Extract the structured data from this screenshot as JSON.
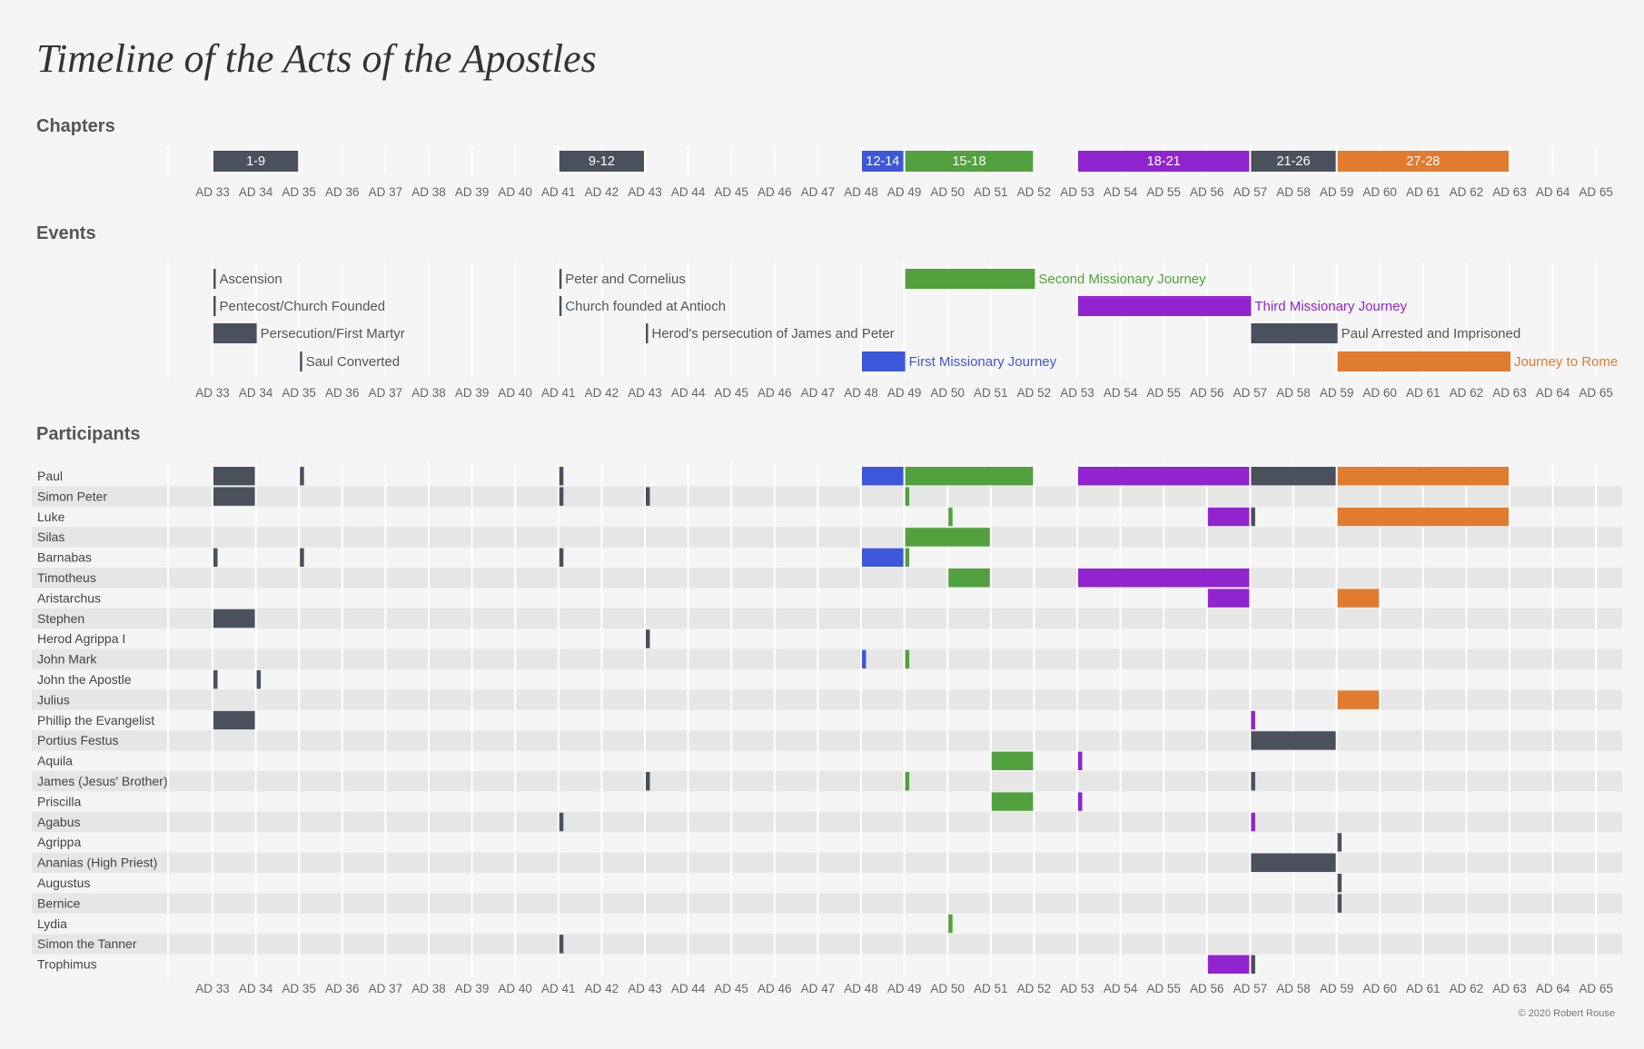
{
  "title": "Timeline of the Acts of the Apostles",
  "sections": {
    "chapters": "Chapters",
    "events": "Events",
    "participants": "Participants"
  },
  "copyright": "© 2020 Robert Rouse",
  "colors": {
    "dark": "#4a505c",
    "blue": "#3d57db",
    "green": "#52a03e",
    "purple": "#9124cf",
    "orange": "#e07b2f",
    "label": "#555555"
  },
  "chart_data": {
    "type": "gantt",
    "x_range": [
      33,
      65
    ],
    "tick_labels": [
      "AD 33",
      "AD 34",
      "AD 35",
      "AD 36",
      "AD 37",
      "AD 38",
      "AD 39",
      "AD 40",
      "AD 41",
      "AD 42",
      "AD 43",
      "AD 44",
      "AD 45",
      "AD 46",
      "AD 47",
      "AD 48",
      "AD 49",
      "AD 50",
      "AD 51",
      "AD 52",
      "AD 53",
      "AD 54",
      "AD 55",
      "AD 56",
      "AD 57",
      "AD 58",
      "AD 59",
      "AD 60",
      "AD 61",
      "AD 62",
      "AD 63",
      "AD 64",
      "AD 65"
    ],
    "chapters": [
      {
        "label": "1-9",
        "start": 33,
        "end": 35,
        "color": "dark"
      },
      {
        "label": "9-12",
        "start": 41,
        "end": 43,
        "color": "dark"
      },
      {
        "label": "12-14",
        "start": 48,
        "end": 49,
        "color": "blue"
      },
      {
        "label": "15-18",
        "start": 49,
        "end": 52,
        "color": "green"
      },
      {
        "label": "18-21",
        "start": 53,
        "end": 57,
        "color": "purple"
      },
      {
        "label": "21-26",
        "start": 57,
        "end": 59,
        "color": "dark"
      },
      {
        "label": "27-28",
        "start": 59,
        "end": 63,
        "color": "orange"
      }
    ],
    "events": [
      [
        {
          "label": "Ascension",
          "start": 33,
          "color": "dark"
        },
        {
          "label": "Peter and Cornelius",
          "start": 41,
          "color": "dark"
        },
        {
          "label": "Second Missionary Journey",
          "start": 49,
          "end": 52,
          "color": "green"
        }
      ],
      [
        {
          "label": "Pentecost/Church Founded",
          "start": 33,
          "color": "dark"
        },
        {
          "label": "Church founded at Antioch",
          "start": 41,
          "color": "dark"
        },
        {
          "label": "Third Missionary Journey",
          "start": 53,
          "end": 57,
          "color": "purple"
        }
      ],
      [
        {
          "label": "Persecution/First Martyr",
          "start": 33,
          "end": 34,
          "color": "dark"
        },
        {
          "label": "Herod's persecution of James and Peter",
          "start": 43,
          "color": "dark"
        },
        {
          "label": "Paul Arrested and Imprisoned",
          "start": 57,
          "end": 59,
          "color": "dark"
        }
      ],
      [
        {
          "label": "Saul Converted",
          "start": 35,
          "color": "dark"
        },
        {
          "label": "First Missionary Journey",
          "start": 48,
          "end": 49,
          "color": "blue"
        },
        {
          "label": "Journey to Rome",
          "start": 59,
          "end": 63,
          "color": "orange"
        }
      ]
    ],
    "participants": [
      {
        "name": "Paul",
        "spans": [
          [
            33,
            34,
            "dark"
          ],
          [
            35,
            null,
            "dark"
          ],
          [
            41,
            null,
            "dark"
          ],
          [
            48,
            49,
            "blue"
          ],
          [
            49,
            52,
            "green"
          ],
          [
            53,
            57,
            "purple"
          ],
          [
            57,
            59,
            "dark"
          ],
          [
            59,
            63,
            "orange"
          ]
        ]
      },
      {
        "name": "Simon Peter",
        "spans": [
          [
            33,
            34,
            "dark"
          ],
          [
            41,
            null,
            "dark"
          ],
          [
            43,
            null,
            "dark"
          ],
          [
            49,
            null,
            "green"
          ]
        ]
      },
      {
        "name": "Luke",
        "spans": [
          [
            50,
            null,
            "green"
          ],
          [
            56,
            57,
            "purple"
          ],
          [
            57,
            null,
            "dark"
          ],
          [
            59,
            63,
            "orange"
          ]
        ]
      },
      {
        "name": "Silas",
        "spans": [
          [
            49,
            51,
            "green"
          ]
        ]
      },
      {
        "name": "Barnabas",
        "spans": [
          [
            33,
            null,
            "dark"
          ],
          [
            35,
            null,
            "dark"
          ],
          [
            41,
            null,
            "dark"
          ],
          [
            48,
            49,
            "blue"
          ],
          [
            49,
            null,
            "green"
          ]
        ]
      },
      {
        "name": "Timotheus",
        "spans": [
          [
            50,
            51,
            "green"
          ],
          [
            53,
            57,
            "purple"
          ]
        ]
      },
      {
        "name": "Aristarchus",
        "spans": [
          [
            56,
            57,
            "purple"
          ],
          [
            59,
            60,
            "orange"
          ]
        ]
      },
      {
        "name": "Stephen",
        "spans": [
          [
            33,
            34,
            "dark"
          ]
        ]
      },
      {
        "name": "Herod Agrippa I",
        "spans": [
          [
            43,
            null,
            "dark"
          ]
        ]
      },
      {
        "name": "John Mark",
        "spans": [
          [
            48,
            null,
            "blue"
          ],
          [
            49,
            null,
            "green"
          ]
        ]
      },
      {
        "name": "John the Apostle",
        "spans": [
          [
            33,
            null,
            "dark"
          ],
          [
            34,
            null,
            "dark"
          ]
        ]
      },
      {
        "name": "Julius",
        "spans": [
          [
            59,
            60,
            "orange"
          ]
        ]
      },
      {
        "name": "Phillip the Evangelist",
        "spans": [
          [
            33,
            34,
            "dark"
          ],
          [
            57,
            null,
            "purple"
          ]
        ]
      },
      {
        "name": "Portius Festus",
        "spans": [
          [
            57,
            59,
            "dark"
          ]
        ]
      },
      {
        "name": "Aquila",
        "spans": [
          [
            51,
            52,
            "green"
          ],
          [
            53,
            null,
            "purple"
          ]
        ]
      },
      {
        "name": "James (Jesus' Brother)",
        "spans": [
          [
            43,
            null,
            "dark"
          ],
          [
            49,
            null,
            "green"
          ],
          [
            57,
            null,
            "dark"
          ]
        ]
      },
      {
        "name": "Priscilla",
        "spans": [
          [
            51,
            52,
            "green"
          ],
          [
            53,
            null,
            "purple"
          ]
        ]
      },
      {
        "name": "Agabus",
        "spans": [
          [
            41,
            null,
            "dark"
          ],
          [
            57,
            null,
            "purple"
          ]
        ]
      },
      {
        "name": "Agrippa",
        "spans": [
          [
            59,
            null,
            "dark"
          ]
        ]
      },
      {
        "name": "Ananias (High Priest)",
        "spans": [
          [
            57,
            59,
            "dark"
          ]
        ]
      },
      {
        "name": "Augustus",
        "spans": [
          [
            59,
            null,
            "dark"
          ]
        ]
      },
      {
        "name": "Bernice",
        "spans": [
          [
            59,
            null,
            "dark"
          ]
        ]
      },
      {
        "name": "Lydia",
        "spans": [
          [
            50,
            null,
            "green"
          ]
        ]
      },
      {
        "name": "Simon the Tanner",
        "spans": [
          [
            41,
            null,
            "dark"
          ]
        ]
      },
      {
        "name": "Trophimus",
        "spans": [
          [
            56,
            57,
            "purple"
          ],
          [
            57,
            null,
            "dark"
          ]
        ]
      }
    ]
  }
}
